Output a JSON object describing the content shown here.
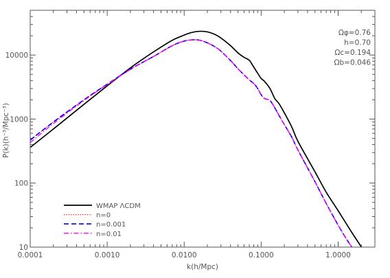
{
  "chart_data": {
    "type": "line",
    "xlabel": "k(h/Mpc)",
    "ylabel": "P(k)(h⁻³/Mpc⁻³)",
    "x_scale": "log",
    "y_scale": "log",
    "xlim": [
      0.0001,
      3
    ],
    "ylim": [
      10,
      50000
    ],
    "x_ticks": [
      {
        "value": 0.0001,
        "label": "0.0001"
      },
      {
        "value": 0.001,
        "label": "0.0010"
      },
      {
        "value": 0.01,
        "label": "0.0100"
      },
      {
        "value": 0.1,
        "label": "0.1000"
      },
      {
        "value": 1,
        "label": "1.0000"
      }
    ],
    "y_ticks": [
      {
        "value": 10,
        "label": "10"
      },
      {
        "value": 100,
        "label": "100"
      },
      {
        "value": 1000,
        "label": "1000"
      },
      {
        "value": 10000,
        "label": "10000"
      }
    ],
    "parameters": [
      "Ωφ=0.76",
      "h=0.70",
      "Ωc=0.194",
      "Ωb=0.046"
    ],
    "series": [
      {
        "name": "WMAP  ΛCDM",
        "color": "#000000",
        "dash": "solid",
        "x": [
          0.0001,
          0.0002,
          0.0005,
          0.001,
          0.002,
          0.004,
          0.007,
          0.01,
          0.0125,
          0.016,
          0.02,
          0.025,
          0.03,
          0.04,
          0.05,
          0.06,
          0.07,
          0.08,
          0.09,
          0.1,
          0.11,
          0.13,
          0.15,
          0.17,
          0.2,
          0.25,
          0.3,
          0.5,
          0.7,
          1.0,
          1.5,
          2.0,
          2.3
        ],
        "y": [
          360,
          700,
          1700,
          3300,
          6300,
          11200,
          17000,
          20500,
          22500,
          23500,
          23000,
          21000,
          18500,
          14000,
          10800,
          9200,
          8300,
          6500,
          5200,
          4300,
          3900,
          3000,
          2100,
          1750,
          1250,
          750,
          450,
          150,
          72,
          37,
          17,
          10,
          7
        ]
      },
      {
        "name": "n=0",
        "color": "#ff0000",
        "dash": "dotted",
        "x": [
          0.0001,
          0.0002,
          0.0005,
          0.001,
          0.002,
          0.004,
          0.007,
          0.01,
          0.013,
          0.016,
          0.02,
          0.025,
          0.03,
          0.04,
          0.05,
          0.06,
          0.07,
          0.08,
          0.09,
          0.1,
          0.11,
          0.13,
          0.15,
          0.17,
          0.2,
          0.25,
          0.3,
          0.5,
          0.7,
          1.0,
          1.3,
          1.5,
          1.7
        ],
        "y": [
          470,
          900,
          2000,
          3500,
          6000,
          9500,
          14000,
          16500,
          17300,
          17000,
          15500,
          13500,
          11500,
          8200,
          6100,
          4900,
          4100,
          3600,
          3000,
          2400,
          2100,
          1950,
          1500,
          1150,
          820,
          520,
          330,
          105,
          48,
          22,
          13,
          10,
          7
        ]
      },
      {
        "name": "n=0.001",
        "color": "#0000ff",
        "dash": "dashed",
        "x": [
          0.0001,
          0.0002,
          0.0005,
          0.001,
          0.002,
          0.004,
          0.007,
          0.01,
          0.013,
          0.016,
          0.02,
          0.025,
          0.03,
          0.04,
          0.05,
          0.06,
          0.07,
          0.08,
          0.09,
          0.1,
          0.11,
          0.13,
          0.15,
          0.17,
          0.2,
          0.25,
          0.3,
          0.5,
          0.7,
          1.0,
          1.3,
          1.5,
          1.7
        ],
        "y": [
          470,
          900,
          2000,
          3500,
          6000,
          9500,
          14000,
          16500,
          17300,
          17000,
          15500,
          13500,
          11500,
          8200,
          6100,
          4900,
          4100,
          3600,
          3000,
          2400,
          2100,
          1950,
          1500,
          1150,
          820,
          520,
          330,
          105,
          48,
          22,
          13,
          10,
          7
        ]
      },
      {
        "name": "n=0.01",
        "color": "#ff00ff",
        "dash": "dashdot",
        "x": [
          0.0001,
          0.0002,
          0.0005,
          0.001,
          0.002,
          0.004,
          0.007,
          0.01,
          0.013,
          0.016,
          0.02,
          0.025,
          0.03,
          0.04,
          0.05,
          0.06,
          0.07,
          0.08,
          0.09,
          0.1,
          0.11,
          0.13,
          0.15,
          0.17,
          0.2,
          0.25,
          0.3,
          0.5,
          0.7,
          1.0,
          1.3,
          1.5,
          1.7
        ],
        "y": [
          430,
          850,
          1950,
          3450,
          5950,
          9500,
          14000,
          16500,
          17300,
          17000,
          15500,
          13500,
          11500,
          8200,
          6100,
          4900,
          4100,
          3600,
          3000,
          2400,
          2100,
          1950,
          1500,
          1150,
          820,
          520,
          330,
          105,
          48,
          22,
          13,
          10,
          7
        ]
      }
    ],
    "legend_position": "bottom-left",
    "grid": false
  }
}
